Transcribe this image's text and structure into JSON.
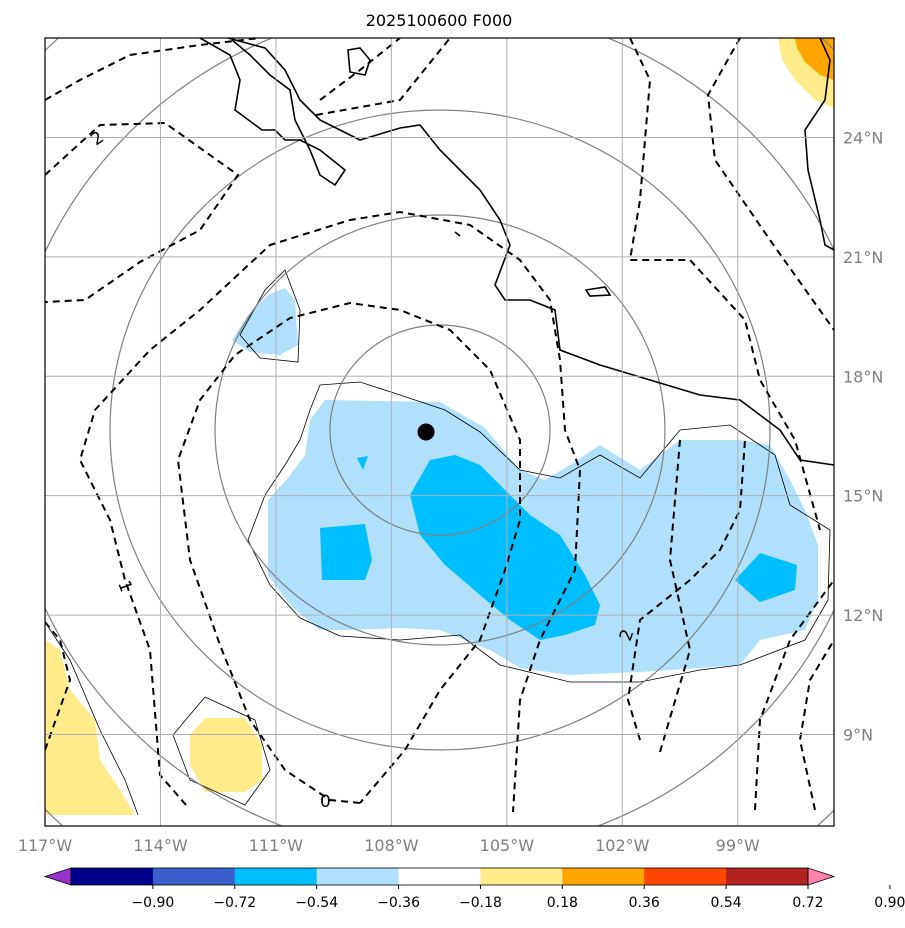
{
  "title": "2025100600 F000",
  "map": {
    "lon_range": [
      -117,
      -96.5
    ],
    "lat_range": [
      6.7,
      26.5
    ],
    "lon_ticks": [
      "117°W",
      "114°W",
      "111°W",
      "108°W",
      "105°W",
      "102°W",
      "99°W"
    ],
    "lon_tick_values": [
      -117,
      -114,
      -111,
      -108,
      -105,
      -102,
      -99
    ],
    "lat_ticks": [
      "9°N",
      "12°N",
      "15°N",
      "18°N",
      "21°N",
      "24°N"
    ],
    "lat_tick_values": [
      9,
      12,
      15,
      18,
      21,
      24
    ],
    "gridlines": true,
    "storm_center": {
      "lon": -107.1,
      "lat": 16.6
    },
    "contour_labels": [
      "2",
      "1",
      "0",
      "2"
    ],
    "colors": {
      "light_blue": "#b0e0fb",
      "mid_blue": "#00bfff",
      "light_yellow": "#ffeb8a",
      "orange": "#ffa500",
      "coast": "#000000",
      "grid": "#b0b0b0",
      "tick_text": "#808080"
    }
  },
  "colorbar": {
    "labels": [
      "−0.90",
      "−0.72",
      "−0.54",
      "−0.36",
      "−0.18",
      "0.18",
      "0.36",
      "0.54",
      "0.72",
      "0.90"
    ],
    "colors": [
      "#9932cc",
      "#00008b",
      "#3a5fcd",
      "#00bfff",
      "#b0e0fb",
      "#ffffff",
      "#ffeb8a",
      "#ffa500",
      "#ff4500",
      "#b22222",
      "#ff82ab"
    ]
  }
}
